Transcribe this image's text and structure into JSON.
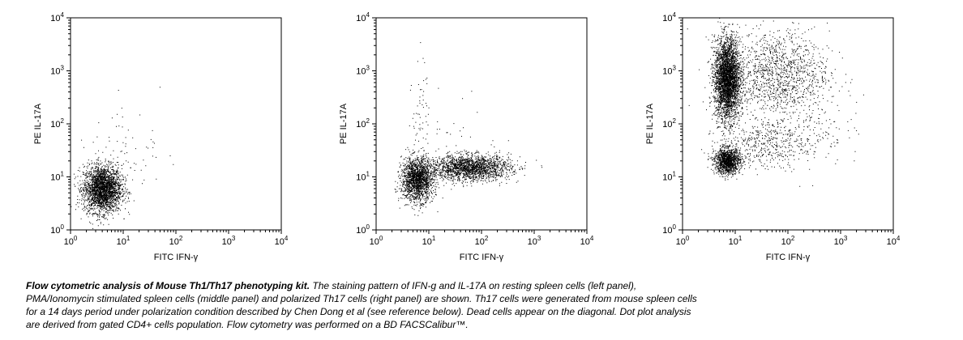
{
  "chart_data": [
    {
      "type": "scatter",
      "xlabel": "FITC IFN-γ",
      "ylabel": "PE IL-17A",
      "xscale": "log",
      "yscale": "log",
      "xlim": [
        1,
        10000
      ],
      "ylim": [
        1,
        10000
      ],
      "ticks": [
        {
          "base": "10",
          "exp": "0"
        },
        {
          "base": "10",
          "exp": "1"
        },
        {
          "base": "10",
          "exp": "2"
        },
        {
          "base": "10",
          "exp": "3"
        },
        {
          "base": "10",
          "exp": "4"
        }
      ],
      "populations": [
        {
          "x": 4,
          "y": 6,
          "sx": 0.18,
          "sy": 0.22,
          "count": 2600
        },
        {
          "x": 11,
          "y": 30,
          "sx": 0.35,
          "sy": 0.4,
          "count": 60
        },
        {
          "x": 40,
          "y": 300,
          "sx": 0.5,
          "sy": 0.4,
          "count": 4
        }
      ],
      "color": "#000000"
    },
    {
      "type": "scatter",
      "xlabel": "FITC IFN-γ",
      "ylabel": "PE IL-17A",
      "xscale": "log",
      "yscale": "log",
      "xlim": [
        1,
        10000
      ],
      "ylim": [
        1,
        10000
      ],
      "ticks": [
        {
          "base": "10",
          "exp": "0"
        },
        {
          "base": "10",
          "exp": "1"
        },
        {
          "base": "10",
          "exp": "2"
        },
        {
          "base": "10",
          "exp": "3"
        },
        {
          "base": "10",
          "exp": "4"
        }
      ],
      "populations": [
        {
          "x": 6,
          "y": 9,
          "sx": 0.15,
          "sy": 0.2,
          "count": 1800
        },
        {
          "x": 60,
          "y": 15,
          "sx": 0.38,
          "sy": 0.12,
          "count": 1900
        },
        {
          "x": 7,
          "y": 200,
          "sx": 0.08,
          "sy": 0.5,
          "count": 50
        },
        {
          "x": 30,
          "y": 60,
          "sx": 0.4,
          "sy": 0.4,
          "count": 40
        }
      ],
      "color": "#000000"
    },
    {
      "type": "scatter",
      "xlabel": "FITC IFN-γ",
      "ylabel": "PE IL-17A",
      "xscale": "log",
      "yscale": "log",
      "xlim": [
        1,
        10000
      ],
      "ylim": [
        1,
        10000
      ],
      "ticks": [
        {
          "base": "10",
          "exp": "0"
        },
        {
          "base": "10",
          "exp": "1"
        },
        {
          "base": "10",
          "exp": "2"
        },
        {
          "base": "10",
          "exp": "3"
        },
        {
          "base": "10",
          "exp": "4"
        }
      ],
      "populations": [
        {
          "x": 7,
          "y": 700,
          "sx": 0.12,
          "sy": 0.38,
          "count": 3400
        },
        {
          "x": 7,
          "y": 20,
          "sx": 0.12,
          "sy": 0.12,
          "count": 1300
        },
        {
          "x": 30,
          "y": 40,
          "sx": 0.4,
          "sy": 0.2,
          "count": 350
        },
        {
          "x": 60,
          "y": 900,
          "sx": 0.5,
          "sy": 0.4,
          "count": 1300
        },
        {
          "x": 150,
          "y": 80,
          "sx": 0.45,
          "sy": 0.35,
          "count": 250
        }
      ],
      "color": "#000000"
    }
  ],
  "caption": {
    "bold": "Flow cytometric analysis of Mouse Th1/Th17 phenotyping kit.",
    "line1": " The staining pattern of IFN-g and IL-17A on resting spleen cells (left panel),",
    "line2": "PMA/Ionomycin stimulated spleen cells (middle panel) and polarized Th17 cells (right panel) are shown. Th17 cells were generated from mouse spleen cells",
    "line3": "for a 14 days period under polarization condition described by Chen Dong et al (see reference below). Dead cells appear on the diagonal. Dot plot analysis",
    "line4": "are derived from gated CD4+ cells population. Flow cytometry was performed on a BD FACSCalibur™."
  }
}
